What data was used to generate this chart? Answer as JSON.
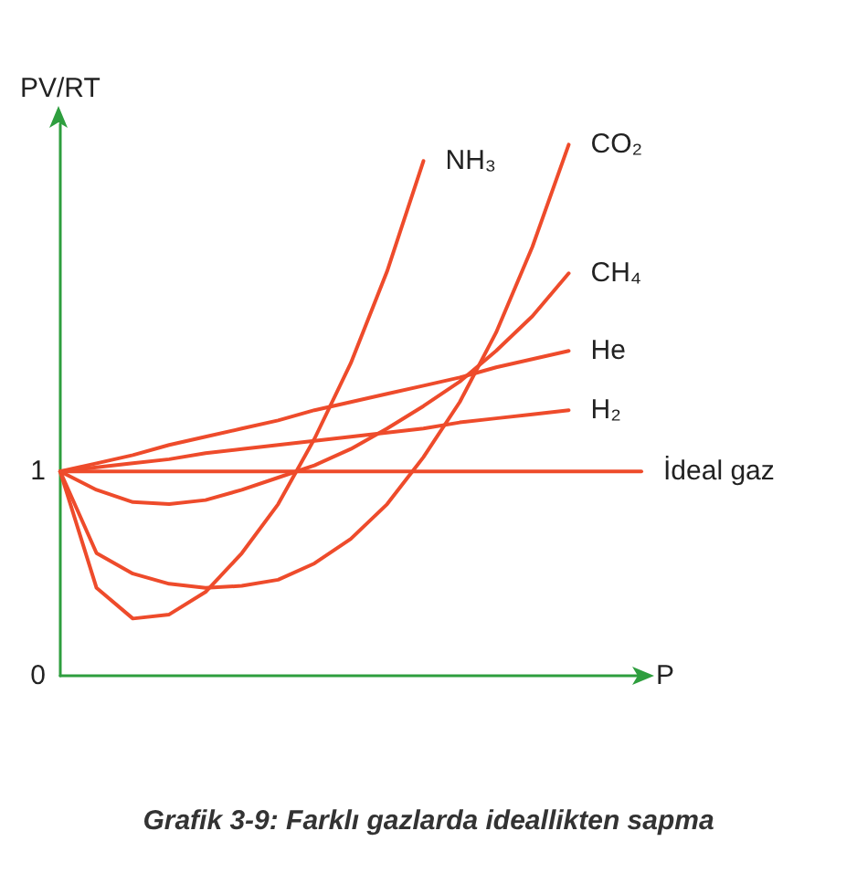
{
  "chart_data": {
    "type": "line",
    "title": "Grafik 3-9: Farklı gazlarda ideallikten sapma",
    "xlabel": "P",
    "ylabel": "PV/RT",
    "categories": [
      null,
      null,
      null,
      null,
      null,
      null,
      null,
      null,
      null,
      null,
      null,
      null,
      null,
      null,
      null,
      null,
      null
    ],
    "series": [
      {
        "name": "NH₃",
        "color": "#ee4b2b",
        "values": [
          1.0,
          0.43,
          0.28,
          0.3,
          0.41,
          0.6,
          0.84,
          1.16,
          1.53,
          1.98,
          2.52,
          null,
          null,
          null,
          null,
          null,
          null
        ]
      },
      {
        "name": "CO₂",
        "color": "#ee4b2b",
        "values": [
          1.0,
          0.6,
          0.5,
          0.45,
          0.43,
          0.44,
          0.47,
          0.55,
          0.67,
          0.84,
          1.07,
          1.34,
          1.68,
          2.1,
          2.6,
          null,
          null
        ]
      },
      {
        "name": "CH₄",
        "color": "#ee4b2b",
        "values": [
          1.0,
          0.91,
          0.85,
          0.84,
          0.86,
          0.91,
          0.97,
          1.03,
          1.11,
          1.21,
          1.32,
          1.44,
          1.59,
          1.76,
          1.97,
          null,
          null
        ]
      },
      {
        "name": "He",
        "color": "#ee4b2b",
        "values": [
          1.0,
          1.04,
          1.08,
          1.13,
          1.17,
          1.21,
          1.25,
          1.3,
          1.34,
          1.38,
          1.42,
          1.46,
          1.51,
          1.55,
          1.59,
          null,
          null
        ]
      },
      {
        "name": "H₂",
        "color": "#ee4b2b",
        "values": [
          1.0,
          1.02,
          1.04,
          1.06,
          1.09,
          1.11,
          1.13,
          1.15,
          1.17,
          1.19,
          1.21,
          1.24,
          1.26,
          1.28,
          1.3,
          null,
          null
        ]
      },
      {
        "name": "İdeal gaz",
        "color": "#ee4b2b",
        "values": [
          1,
          1,
          1,
          1,
          1,
          1,
          1,
          1,
          1,
          1,
          1,
          1,
          1,
          1,
          1,
          1,
          1
        ]
      }
    ],
    "ylim": [
      0,
      2.7
    ],
    "yticks": [
      0,
      1
    ],
    "tick_labels": "y",
    "grid": false,
    "legend": false,
    "marker": "none",
    "line_style": "solid"
  }
}
